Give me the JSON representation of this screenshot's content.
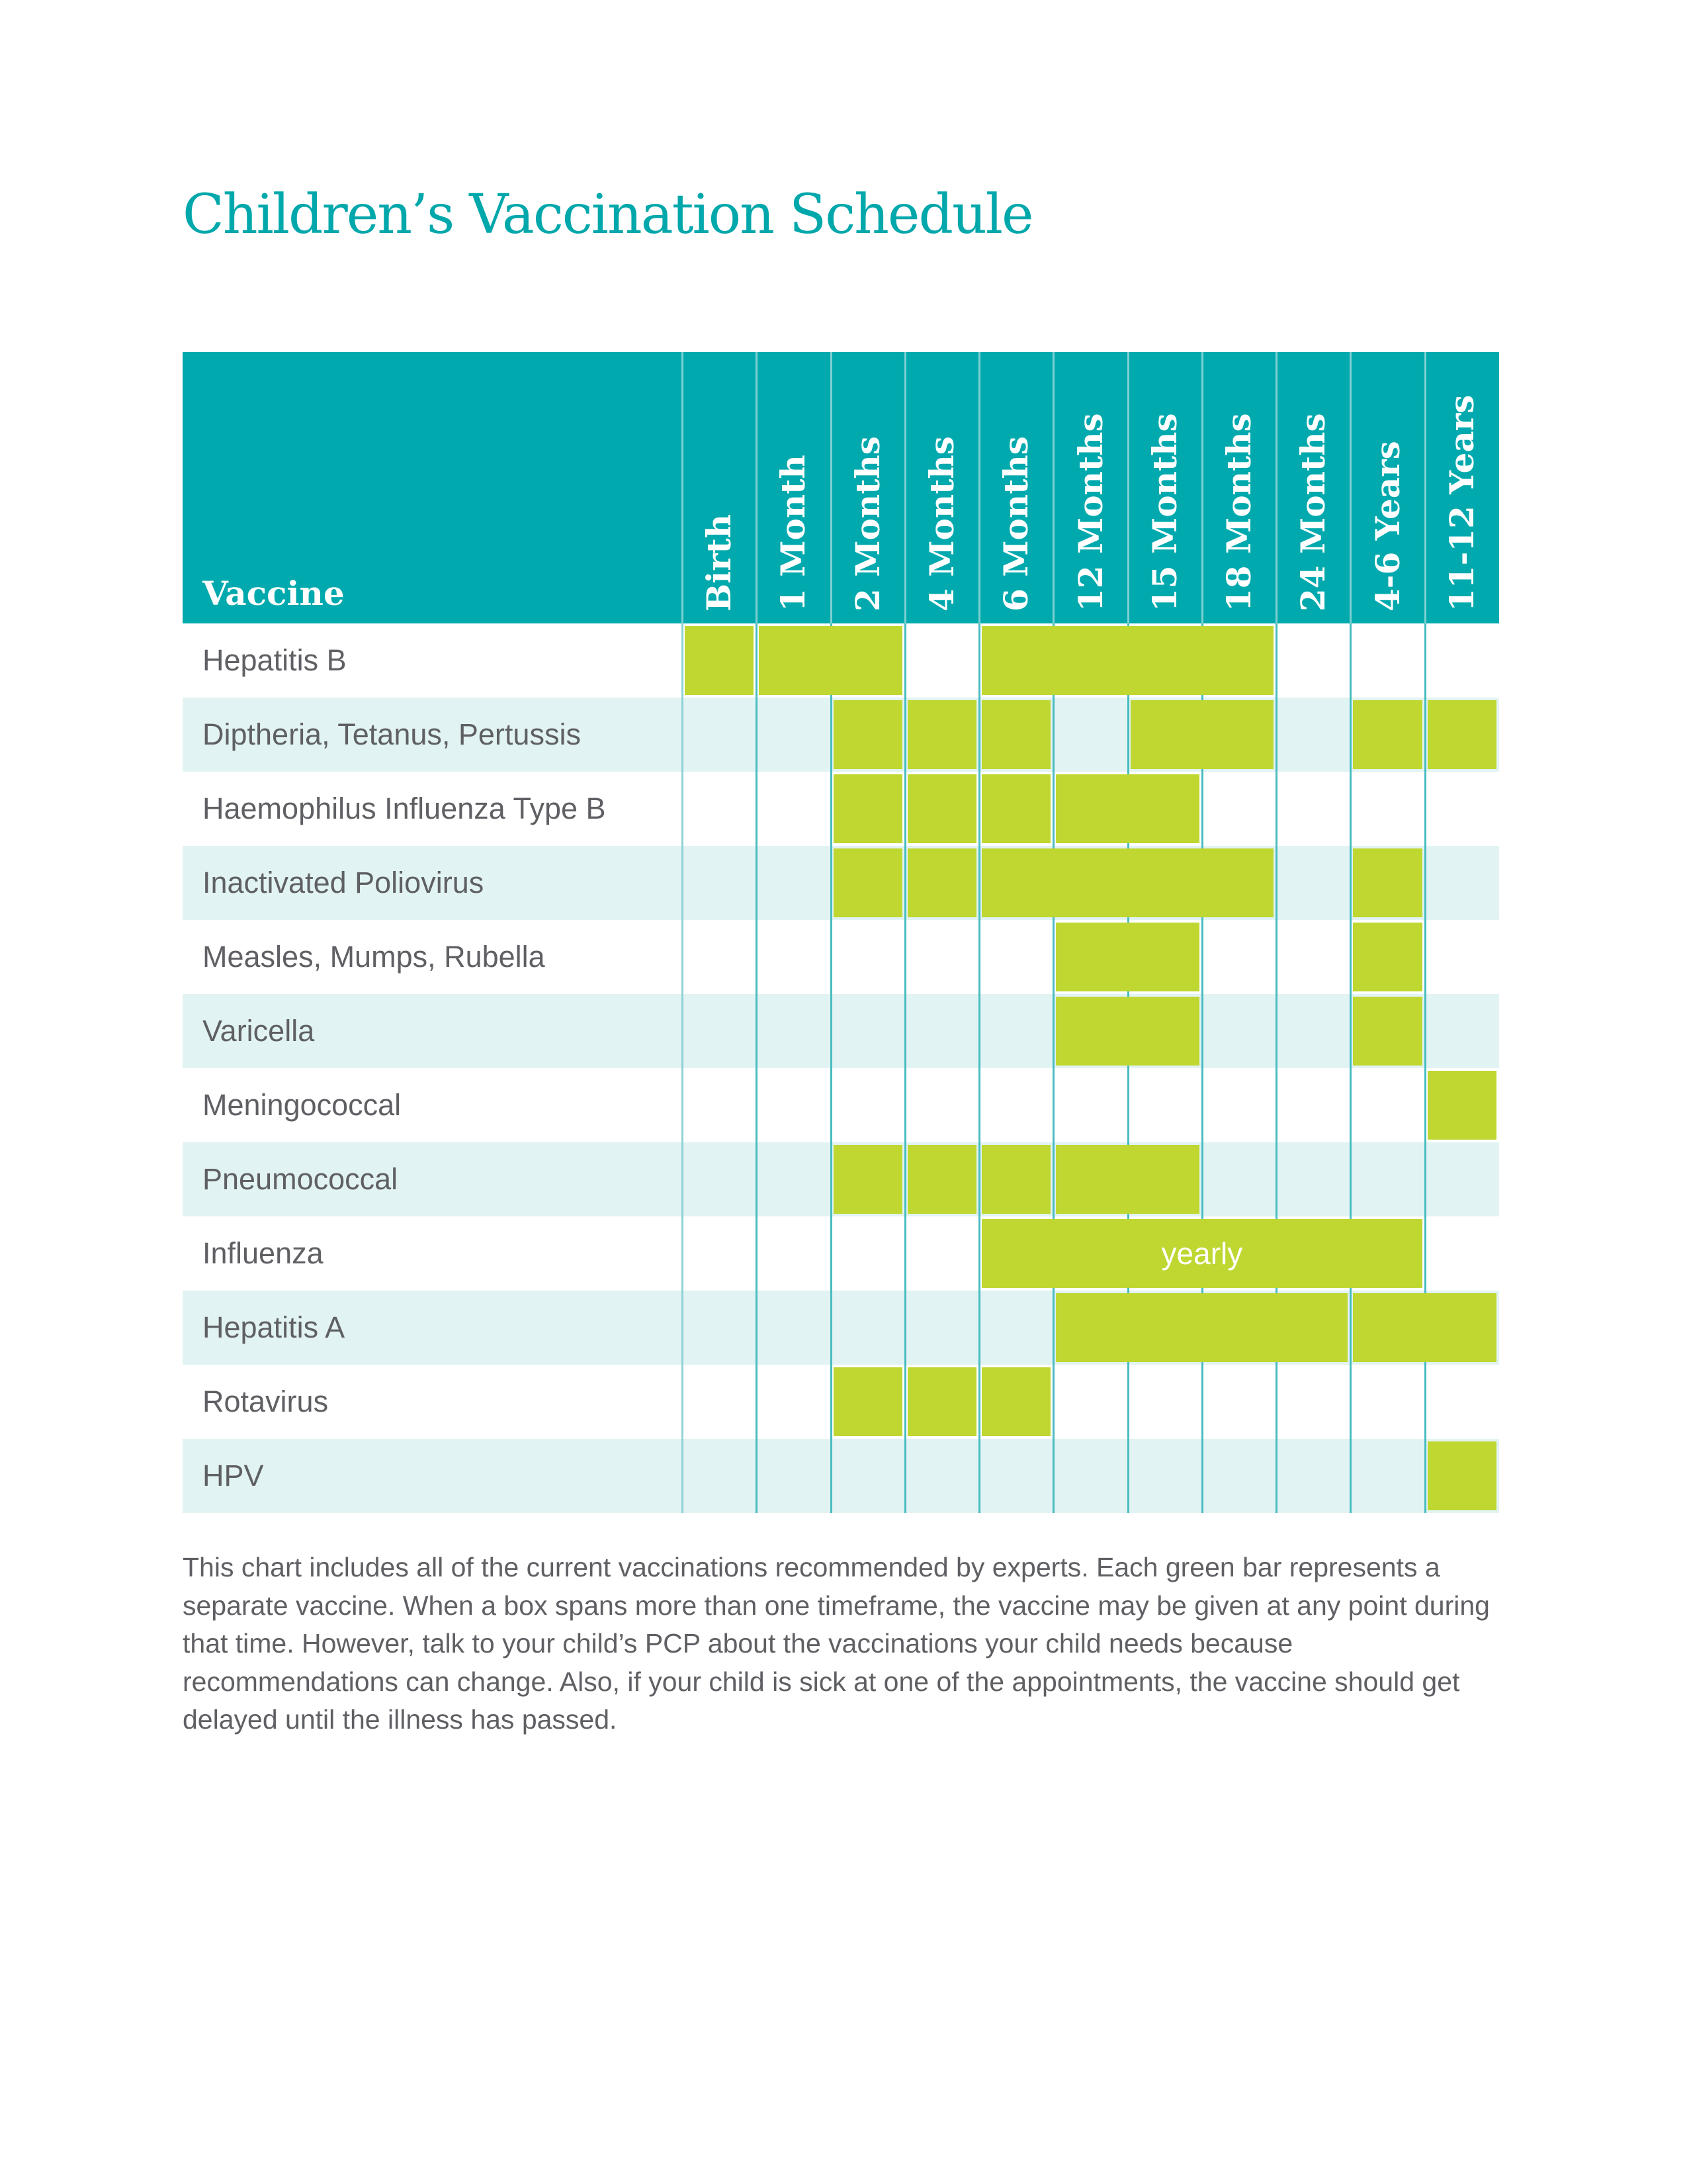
{
  "title": "Children’s Vaccination Schedule",
  "colors": {
    "title": "#00a7ab",
    "header_bg": "#00a9ad",
    "row_alt_bg": "#e2f3f3",
    "grid_line": "#48bcc0",
    "bar": "#bfd730",
    "text": "#5f6064",
    "header_text": "#ffffff"
  },
  "vaccine_column_label": "Vaccine",
  "age_columns": [
    "Birth",
    "1 Month",
    "2 Months",
    "4 Months",
    "6 Months",
    "12 Months",
    "15 Months",
    "18 Months",
    "24 Months",
    "4-6 Years",
    "11-12 Years"
  ],
  "vaccines": [
    {
      "name": "Hepatitis B",
      "doses": [
        {
          "from": "Birth",
          "to": "Birth"
        },
        {
          "from": "1 Month",
          "to": "2 Months"
        },
        {
          "from": "6 Months",
          "to": "18 Months"
        }
      ]
    },
    {
      "name": "Diptheria, Tetanus, Pertussis",
      "doses": [
        {
          "from": "2 Months",
          "to": "2 Months"
        },
        {
          "from": "4 Months",
          "to": "4 Months"
        },
        {
          "from": "6 Months",
          "to": "6 Months"
        },
        {
          "from": "15 Months",
          "to": "18 Months"
        },
        {
          "from": "4-6 Years",
          "to": "4-6 Years"
        },
        {
          "from": "11-12 Years",
          "to": "11-12 Years"
        }
      ]
    },
    {
      "name": "Haemophilus Influenza Type B",
      "doses": [
        {
          "from": "2 Months",
          "to": "2 Months"
        },
        {
          "from": "4 Months",
          "to": "4 Months"
        },
        {
          "from": "6 Months",
          "to": "6 Months"
        },
        {
          "from": "12 Months",
          "to": "15 Months"
        }
      ]
    },
    {
      "name": "Inactivated Poliovirus",
      "doses": [
        {
          "from": "2 Months",
          "to": "2 Months"
        },
        {
          "from": "4 Months",
          "to": "4 Months"
        },
        {
          "from": "6 Months",
          "to": "18 Months"
        },
        {
          "from": "4-6 Years",
          "to": "4-6 Years"
        }
      ]
    },
    {
      "name": "Measles, Mumps, Rubella",
      "doses": [
        {
          "from": "12 Months",
          "to": "15 Months"
        },
        {
          "from": "4-6 Years",
          "to": "4-6 Years"
        }
      ]
    },
    {
      "name": "Varicella",
      "doses": [
        {
          "from": "12 Months",
          "to": "15 Months"
        },
        {
          "from": "4-6 Years",
          "to": "4-6 Years"
        }
      ]
    },
    {
      "name": "Meningococcal",
      "doses": [
        {
          "from": "11-12 Years",
          "to": "11-12 Years"
        }
      ]
    },
    {
      "name": "Pneumococcal",
      "doses": [
        {
          "from": "2 Months",
          "to": "2 Months"
        },
        {
          "from": "4 Months",
          "to": "4 Months"
        },
        {
          "from": "6 Months",
          "to": "6 Months"
        },
        {
          "from": "12 Months",
          "to": "15 Months"
        }
      ]
    },
    {
      "name": "Influenza",
      "doses": [
        {
          "from": "6 Months",
          "to": "4-6 Years",
          "label": "yearly"
        }
      ]
    },
    {
      "name": "Hepatitis A",
      "doses": [
        {
          "from": "12 Months",
          "to": "24 Months"
        },
        {
          "from": "4-6 Years",
          "to": "11-12 Years"
        }
      ]
    },
    {
      "name": "Rotavirus",
      "doses": [
        {
          "from": "2 Months",
          "to": "2 Months"
        },
        {
          "from": "4 Months",
          "to": "4 Months"
        },
        {
          "from": "6 Months",
          "to": "6 Months"
        }
      ]
    },
    {
      "name": "HPV",
      "doses": [
        {
          "from": "11-12 Years",
          "to": "11-12 Years"
        }
      ]
    }
  ],
  "footnote": "This chart includes all of the current vaccinations recommended by experts. Each green bar represents a separate vaccine. When a box spans more than one timeframe, the vaccine may be given at any point during that time. However, talk to your child’s PCP about the vaccinations your child needs because recommendations can change. Also, if your child is sick at one of the appointments, the vaccine should get delayed until the illness has passed."
}
